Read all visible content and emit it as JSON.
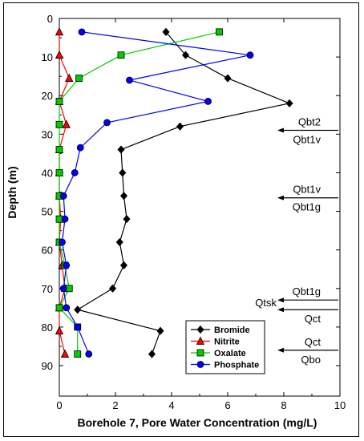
{
  "chart_data": {
    "type": "line",
    "title": "",
    "xlabel": "Borehole 7, Pore Water Concentration (mg/L)",
    "ylabel": "Depth (m)",
    "xlim": [
      0,
      10
    ],
    "ylim": [
      0,
      90
    ],
    "y_inverted": true,
    "x_ticks": [
      0,
      2,
      4,
      6,
      8,
      10
    ],
    "y_ticks": [
      0,
      10,
      20,
      30,
      40,
      50,
      60,
      70,
      80,
      90
    ],
    "grid": false,
    "legend_position": "bottom-right",
    "series": [
      {
        "name": "Bromide",
        "color": "#000000",
        "marker": "diamond",
        "points": [
          [
            3.8,
            3.5
          ],
          [
            4.5,
            9.5
          ],
          [
            6.0,
            15.5
          ],
          [
            8.2,
            22
          ],
          [
            4.3,
            28
          ],
          [
            2.2,
            34
          ],
          [
            2.25,
            40
          ],
          [
            2.3,
            46
          ],
          [
            2.4,
            52
          ],
          [
            2.15,
            58
          ],
          [
            2.3,
            64
          ],
          [
            1.9,
            70
          ],
          [
            0.65,
            75.5
          ],
          [
            3.6,
            81
          ],
          [
            3.3,
            87
          ]
        ]
      },
      {
        "name": "Nitrite",
        "color": "#ff0000",
        "marker": "triangle",
        "points": [
          [
            0.0,
            3.5
          ],
          [
            0.0,
            9.5
          ],
          [
            0.35,
            15.5
          ],
          [
            0.0,
            21.5
          ],
          [
            0.25,
            27.5
          ],
          [
            0.0,
            34
          ],
          [
            0.0,
            40
          ],
          [
            0.0,
            46
          ],
          [
            0.05,
            52
          ],
          [
            0.0,
            58
          ],
          [
            0.1,
            64
          ],
          [
            0.2,
            70
          ],
          [
            0.0,
            75
          ],
          [
            0.0,
            81
          ],
          [
            0.2,
            87
          ]
        ]
      },
      {
        "name": "Oxalate",
        "color": "#00cc00",
        "marker": "square",
        "points": [
          [
            5.7,
            3.5
          ],
          [
            2.2,
            9.5
          ],
          [
            0.7,
            15.5
          ],
          [
            0.0,
            21.5
          ],
          [
            0.0,
            27.5
          ],
          [
            0.0,
            34
          ],
          [
            0.0,
            40
          ],
          [
            0.0,
            46
          ],
          [
            0.0,
            52
          ],
          [
            0.0,
            58
          ],
          [
            0.2,
            64
          ],
          [
            0.35,
            70
          ],
          [
            0.0,
            75
          ],
          [
            0.65,
            80
          ],
          [
            0.65,
            87
          ]
        ]
      },
      {
        "name": "Phosphate",
        "color": "#0000ff",
        "marker": "circle",
        "points": [
          [
            0.8,
            3.5
          ],
          [
            6.8,
            9.5
          ],
          [
            2.5,
            16
          ],
          [
            5.3,
            21.5
          ],
          [
            1.7,
            27
          ],
          [
            0.75,
            33.5
          ],
          [
            0.55,
            40
          ],
          [
            0.15,
            46
          ],
          [
            0.2,
            52
          ],
          [
            0.1,
            58
          ],
          [
            0.25,
            64
          ],
          [
            0.15,
            70
          ],
          [
            0.25,
            75
          ],
          [
            0.65,
            80
          ],
          [
            1.05,
            87
          ]
        ]
      }
    ],
    "annotations": [
      {
        "text_above": "Qbt2",
        "text_below": "Qbt1v",
        "depth": 29
      },
      {
        "text_above": "Qbt1v",
        "text_below": "Qbt1g",
        "depth": 46.5
      },
      {
        "text_above": "Qbt1g",
        "text_below": "Qtsk",
        "depth": 73
      },
      {
        "text_above": "Qtsk",
        "text_below": "Qct",
        "depth": 75.5
      },
      {
        "text_above": "Qct",
        "text_below": "Qbo",
        "depth": 86
      }
    ]
  }
}
